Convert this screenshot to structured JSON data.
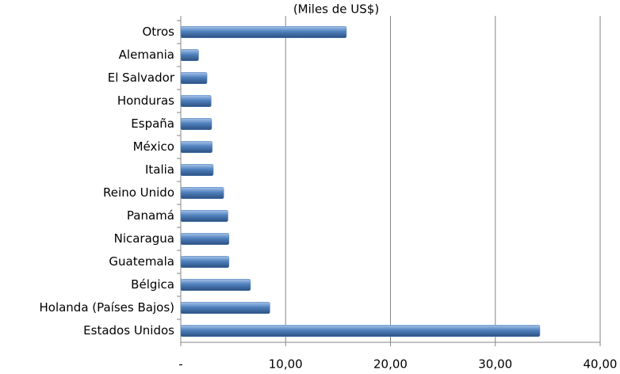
{
  "chart_data": {
    "type": "bar",
    "orientation": "horizontal",
    "subtitle": "(Miles de US$)",
    "categories": [
      "Otros",
      "Alemania",
      "El Salvador",
      "Honduras",
      "España",
      "México",
      "Italia",
      "Reino Unido",
      "Panamá",
      "Nicaragua",
      "Guatemala",
      "Bélgica",
      "Holanda (Países Bajos)",
      "Estados Unidos"
    ],
    "values": [
      15.8,
      1.7,
      2.5,
      2.9,
      2.95,
      3.0,
      3.1,
      4.1,
      4.5,
      4.6,
      4.6,
      6.65,
      8.5,
      34.25
    ],
    "color": "#4f81bd",
    "xlim": [
      0,
      40
    ],
    "xticks": [
      {
        "value": 0,
        "label": "-"
      },
      {
        "value": 10,
        "label": "10,00"
      },
      {
        "value": 20,
        "label": "20,00"
      },
      {
        "value": 30,
        "label": "30,00"
      },
      {
        "value": 40,
        "label": "40,00"
      }
    ],
    "grid": true
  }
}
